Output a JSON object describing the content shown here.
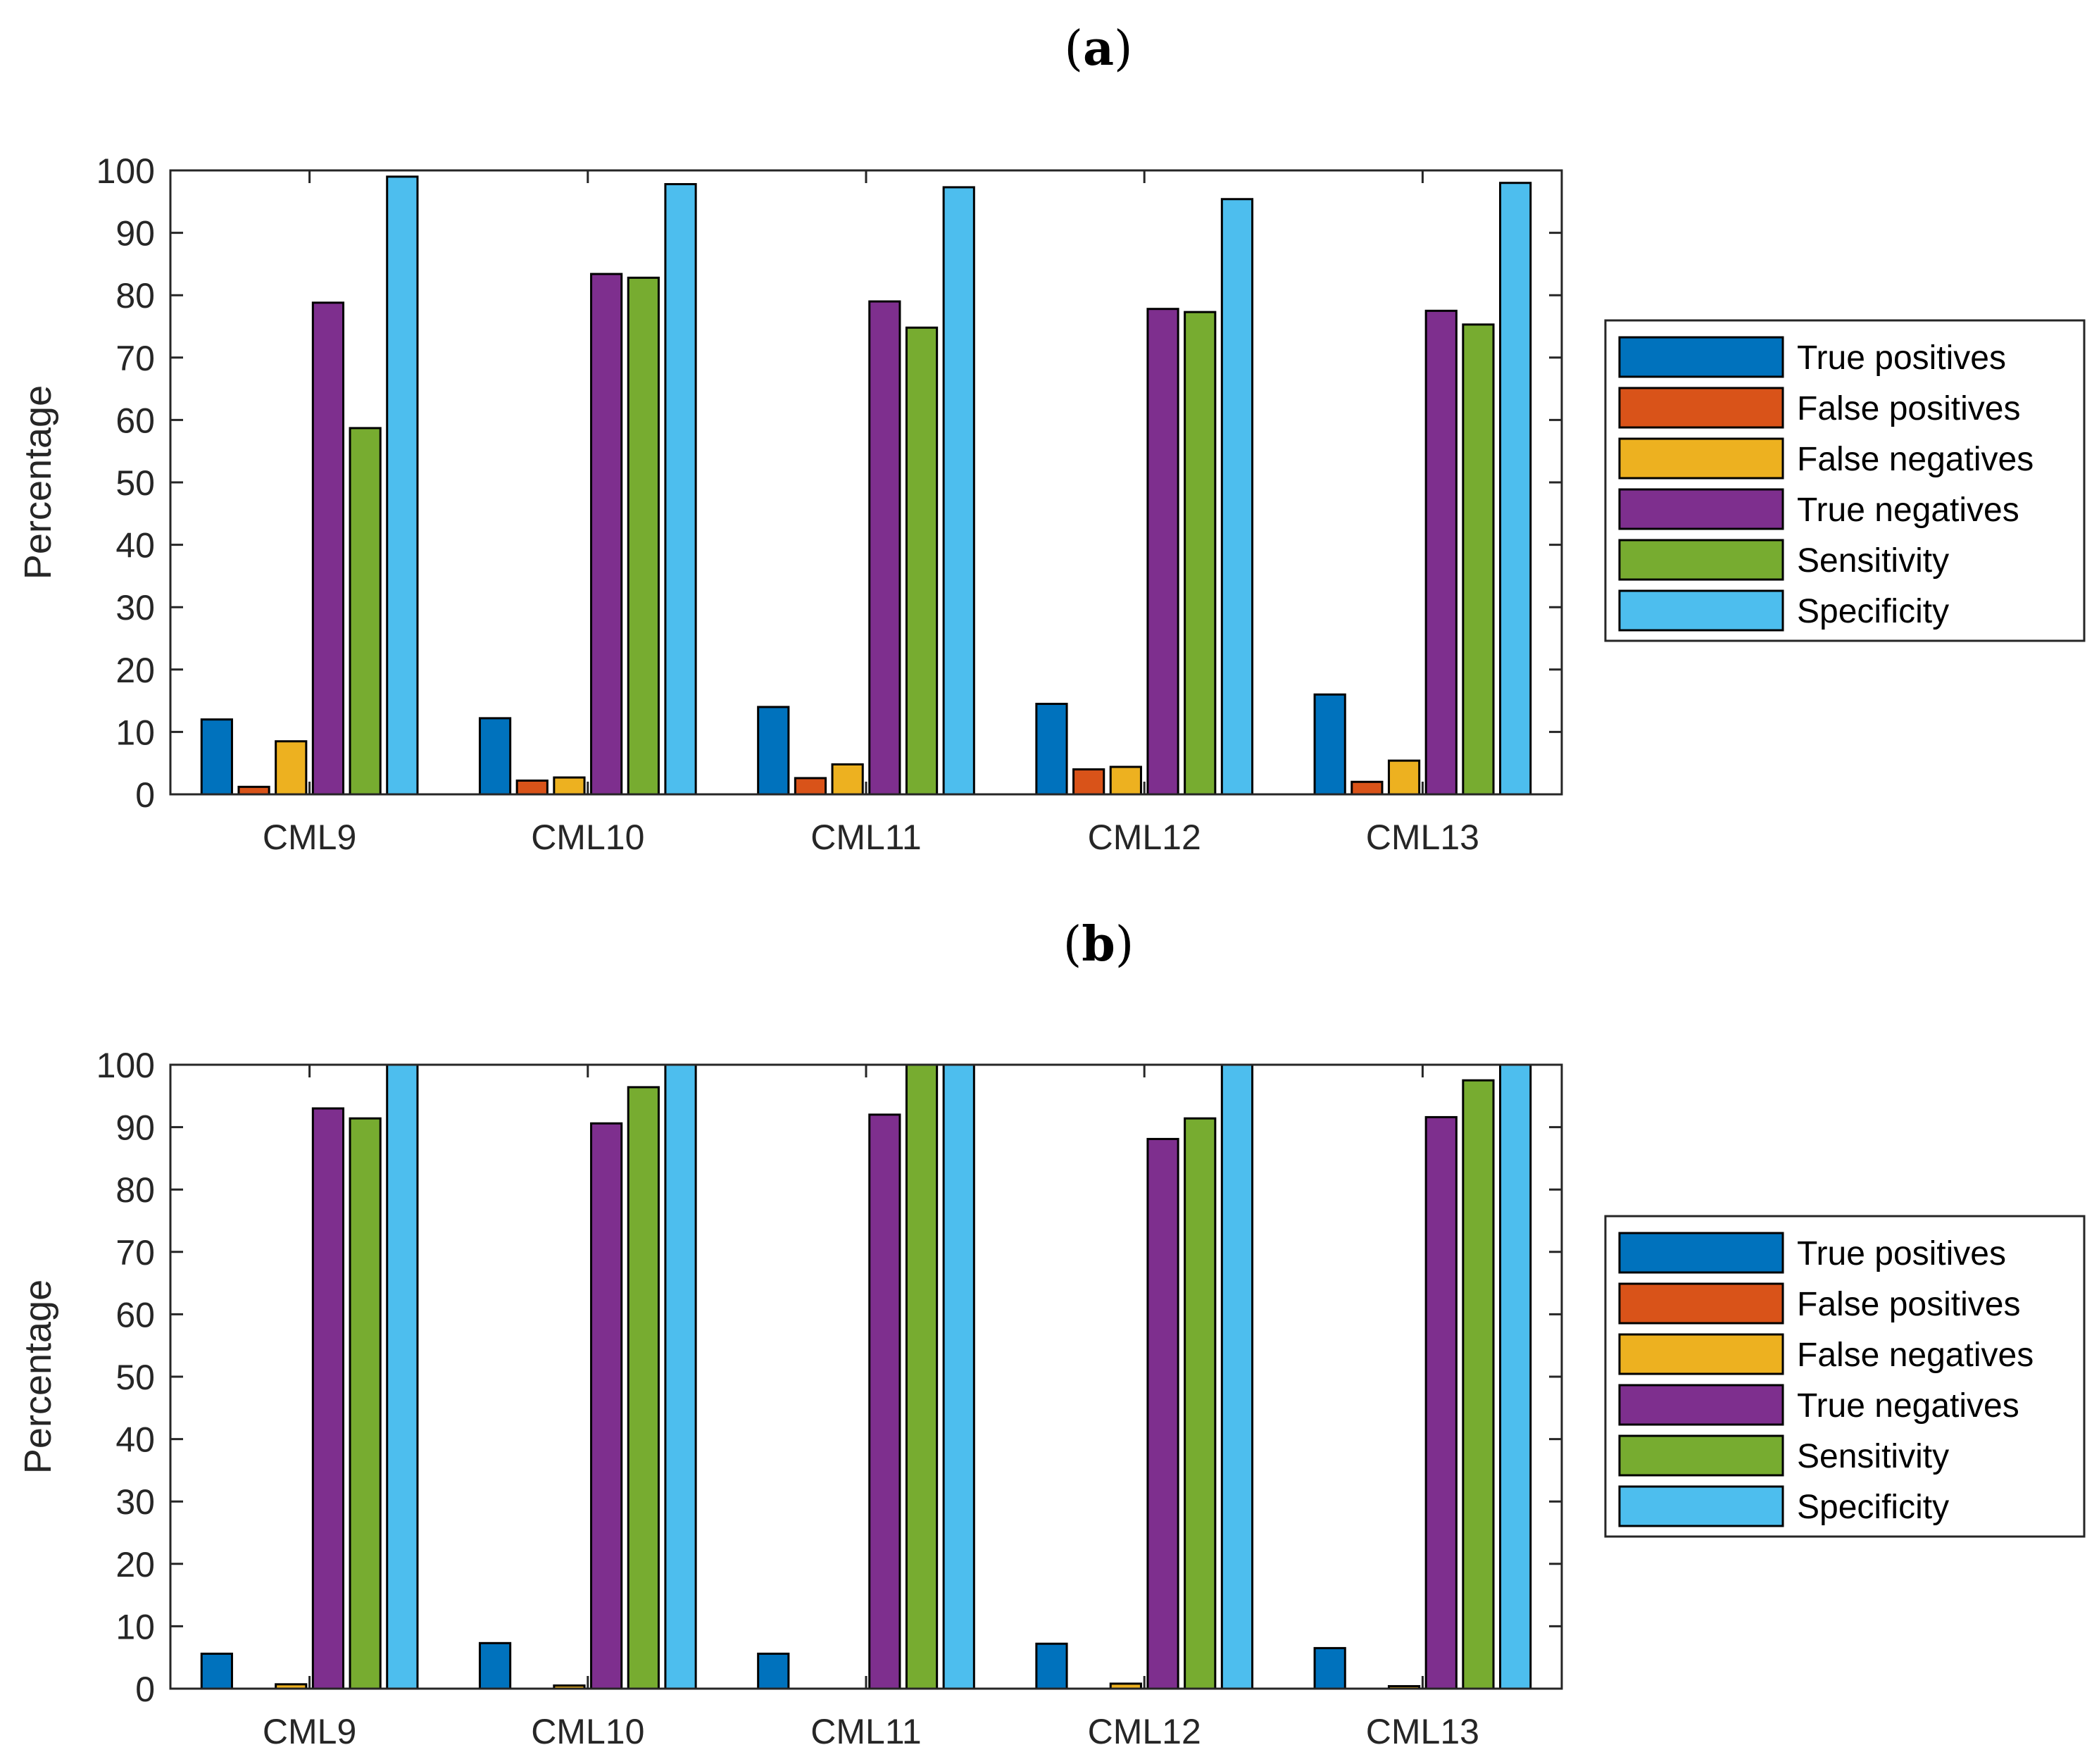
{
  "chart_data": [
    {
      "type": "bar",
      "panel": "a",
      "panel_label_open": "(",
      "panel_label_letter": "a",
      "panel_label_close": ")",
      "title": "",
      "xlabel": "",
      "ylabel": "Percentage",
      "ylim": [
        0,
        100
      ],
      "yticks": [
        0,
        10,
        20,
        30,
        40,
        50,
        60,
        70,
        80,
        90,
        100
      ],
      "grid": false,
      "legend_position": "right",
      "categories": [
        "CML9",
        "CML10",
        "CML11",
        "CML12",
        "CML13"
      ],
      "series": [
        {
          "name": "True positives",
          "color": "#0072BD",
          "values": [
            12,
            12.2,
            14,
            14.5,
            16
          ]
        },
        {
          "name": "False positives",
          "color": "#D95319",
          "values": [
            1.2,
            2.2,
            2.6,
            4,
            2
          ]
        },
        {
          "name": "False negatives",
          "color": "#EDB120",
          "values": [
            8.5,
            2.7,
            4.8,
            4.4,
            5.4
          ]
        },
        {
          "name": "True negatives",
          "color": "#7E2F8E",
          "values": [
            78.8,
            83.4,
            79,
            77.8,
            77.5
          ]
        },
        {
          "name": "Sensitivity",
          "color": "#77AC30",
          "values": [
            58.7,
            82.8,
            74.8,
            77.3,
            75.3
          ]
        },
        {
          "name": "Specificity",
          "color": "#4DBEEE",
          "values": [
            99,
            97.8,
            97.3,
            95.4,
            98
          ]
        }
      ]
    },
    {
      "type": "bar",
      "panel": "b",
      "panel_label_open": "(",
      "panel_label_letter": "b",
      "panel_label_close": ")",
      "title": "",
      "xlabel": "",
      "ylabel": "Percentage",
      "ylim": [
        0,
        100
      ],
      "yticks": [
        0,
        10,
        20,
        30,
        40,
        50,
        60,
        70,
        80,
        90,
        100
      ],
      "grid": false,
      "legend_position": "right",
      "categories": [
        "CML9",
        "CML10",
        "CML11",
        "CML12",
        "CML13"
      ],
      "series": [
        {
          "name": "True positives",
          "color": "#0072BD",
          "values": [
            5.6,
            7.3,
            5.6,
            7.2,
            6.5
          ]
        },
        {
          "name": "False positives",
          "color": "#D95319",
          "values": [
            0,
            0,
            0,
            0,
            0
          ]
        },
        {
          "name": "False negatives",
          "color": "#EDB120",
          "values": [
            0.7,
            0.5,
            0,
            0.8,
            0.4
          ]
        },
        {
          "name": "True negatives",
          "color": "#7E2F8E",
          "values": [
            93,
            90.6,
            92,
            88.1,
            91.6
          ]
        },
        {
          "name": "Sensitivity",
          "color": "#77AC30",
          "values": [
            91.4,
            96.4,
            100,
            91.4,
            97.5
          ]
        },
        {
          "name": "Specificity",
          "color": "#4DBEEE",
          "values": [
            100,
            100,
            100,
            100,
            100
          ]
        }
      ]
    }
  ]
}
